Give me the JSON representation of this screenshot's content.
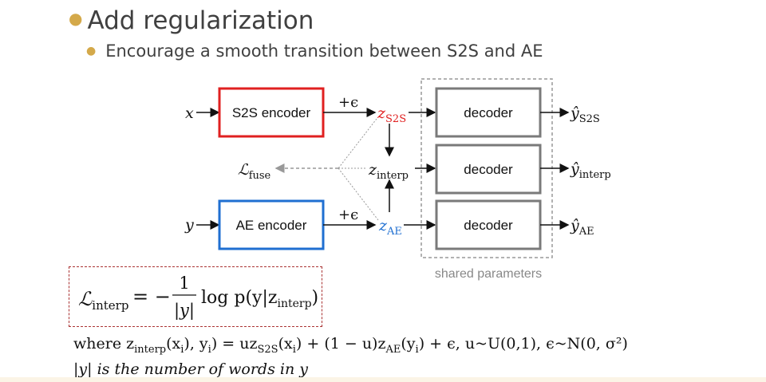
{
  "slide": {
    "bullet1": "Add regularization",
    "bullet2": "Encourage a smooth transition between S2S and AE"
  },
  "diagram": {
    "x_input": "x",
    "y_input": "y",
    "s2s_encoder": "S2S encoder",
    "ae_encoder": "AE encoder",
    "plus_eps_top": "+ϵ",
    "plus_eps_bottom": "+ϵ",
    "z_s2s": {
      "base": "z",
      "sub": "S2S"
    },
    "z_interp": {
      "base": "z",
      "sub": "interp"
    },
    "z_ae": {
      "base": "z",
      "sub": "AE"
    },
    "l_fuse": {
      "base": "ℒ",
      "sub": "fuse"
    },
    "decoder_1": "decoder",
    "decoder_2": "decoder",
    "decoder_3": "decoder",
    "y_hat_s2s": {
      "base": "ŷ",
      "sub": "S2S"
    },
    "y_hat_interp": {
      "base": "ŷ",
      "sub": "interp"
    },
    "y_hat_ae": {
      "base": "ŷ",
      "sub": "AE"
    },
    "shared_params": "shared parameters"
  },
  "formula": {
    "lhs": "ℒ",
    "lhs_sub": "interp",
    "equals": "= −",
    "numerator": "1",
    "denominator": "|y|",
    "rhs": "log p(y|z",
    "rhs_sub": "interp",
    "rhs_close": ")"
  },
  "explanation": {
    "line1_where": "where z",
    "line1_sub": "interp",
    "line1_rest": "(x",
    "line1_full_after": "), y",
    "line1_tail": ") = uz",
    "line1_s2s": "S2S",
    "line1_part2": "(x",
    "line1_part3": ") + (1 − u)z",
    "line1_ae": "AE",
    "line1_part4": "(y",
    "line1_part5": ") + ϵ, u~U(0,1), ϵ~N(0, σ²)",
    "sub_i": "i",
    "line2": "|y| is the number of words in y"
  },
  "colors": {
    "s2s_red": "#e02020",
    "ae_blue": "#1f6fd1",
    "decoder_gray": "#7a7a7a",
    "bullet_gold": "#d4a94a",
    "formula_border": "#a33333"
  }
}
